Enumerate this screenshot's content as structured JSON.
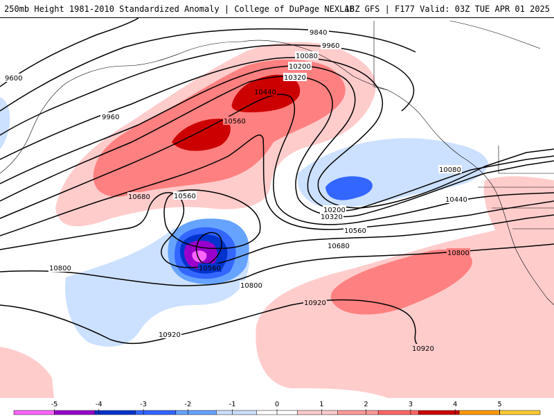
{
  "header": {
    "left_title": "250mb Height 1981-2010 Standardized Anomaly | College of DuPage NEXLAB",
    "right_title": "18Z GFS | F177 Valid: 03Z TUE APR 01 2025"
  },
  "contour_labels": [
    {
      "id": "c9600",
      "text": "9600"
    },
    {
      "id": "c9840",
      "text": "9840"
    },
    {
      "id": "c9960a",
      "text": "9960"
    },
    {
      "id": "c9960b",
      "text": "9960"
    },
    {
      "id": "c10080a",
      "text": "10080"
    },
    {
      "id": "c10080b",
      "text": "10080"
    },
    {
      "id": "c10200a",
      "text": "10200"
    },
    {
      "id": "c10200b",
      "text": "10200"
    },
    {
      "id": "c10320a",
      "text": "10320"
    },
    {
      "id": "c10320b",
      "text": "10320"
    },
    {
      "id": "c10440a",
      "text": "10440"
    },
    {
      "id": "c10440b",
      "text": "10440"
    },
    {
      "id": "c10560a",
      "text": "10560"
    },
    {
      "id": "c10560b",
      "text": "10560"
    },
    {
      "id": "c10560c",
      "text": "10560"
    },
    {
      "id": "c10560d",
      "text": "10560"
    },
    {
      "id": "c10680a",
      "text": "10680"
    },
    {
      "id": "c10680b",
      "text": "10680"
    },
    {
      "id": "c10800a",
      "text": "10800"
    },
    {
      "id": "c10800b",
      "text": "10800"
    },
    {
      "id": "c10800c",
      "text": "10800"
    },
    {
      "id": "c10920a",
      "text": "10920"
    },
    {
      "id": "c10920b",
      "text": "10920"
    },
    {
      "id": "c10920c",
      "text": "10920"
    }
  ],
  "colorbar": {
    "ticks": [
      "-5",
      "-4",
      "-3",
      "-2",
      "-1",
      "0",
      "1",
      "2",
      "3",
      "4",
      "5"
    ],
    "colors": [
      "#ff66ff",
      "#9900cc",
      "#0033cc",
      "#3366ff",
      "#66a3ff",
      "#cce0ff",
      "#ffffff",
      "#ffcccc",
      "#ff9999",
      "#ff6666",
      "#cc0000",
      "#ff9900",
      "#ffcc33"
    ]
  }
}
